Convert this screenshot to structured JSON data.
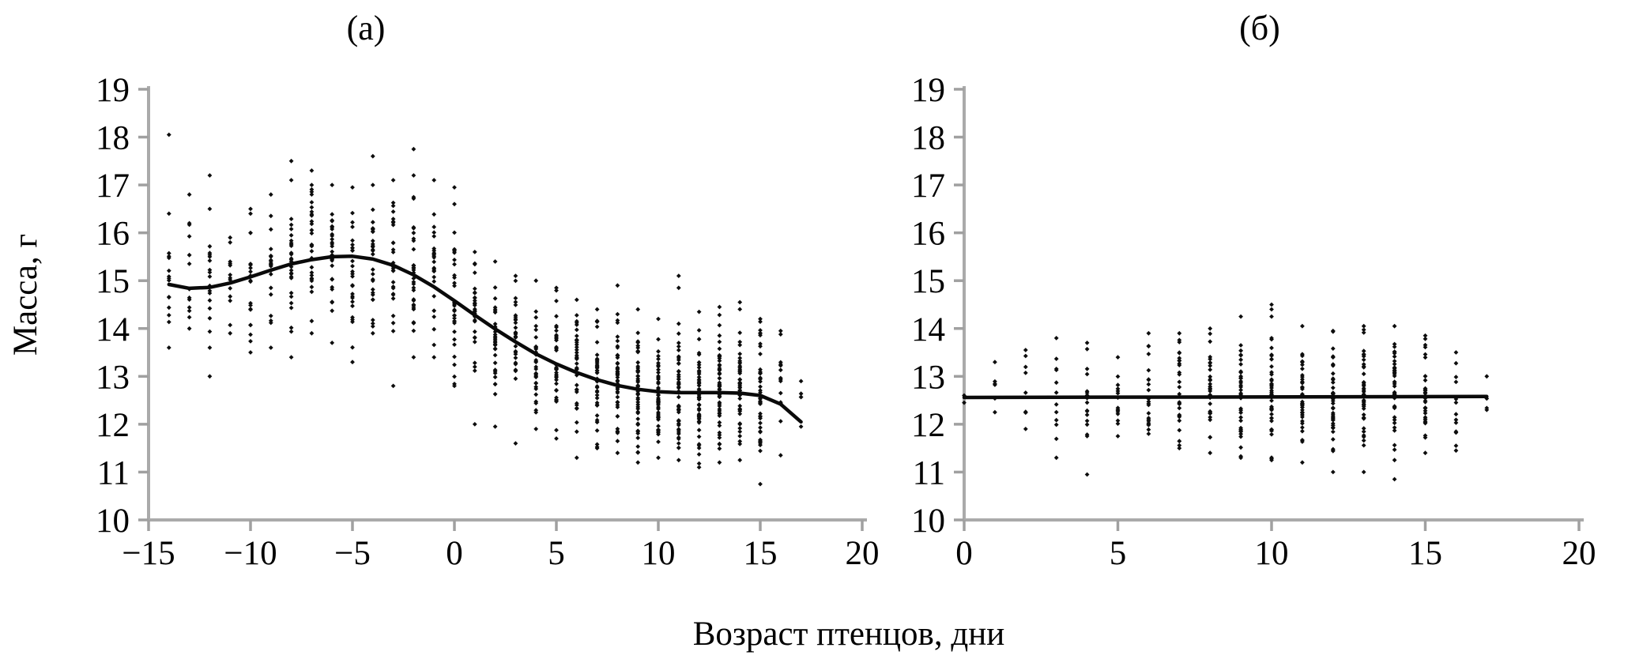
{
  "figure": {
    "panel_a_title": "(а)",
    "panel_b_title": "(б)",
    "y_axis_label": "Масса, г",
    "x_axis_label": "Возраст птенцов, дни"
  },
  "colors": {
    "point": "#0d0d0d",
    "trend_line": "#0a0a0a",
    "axis": "#aaaaaa",
    "tick": "#a0a0a0",
    "text": "#000000",
    "background": "#ffffff"
  },
  "chart_data": [
    {
      "type": "scatter",
      "panel": "(а)",
      "xlabel": "Возраст птенцов, дни",
      "ylabel": "Масса, г",
      "xlim": [
        -15,
        20
      ],
      "ylim": [
        10,
        19
      ],
      "grid": false,
      "xticks": [
        {
          "v": -15,
          "label": "−15"
        },
        {
          "v": -10,
          "label": "−10"
        },
        {
          "v": -5,
          "label": "−5"
        },
        {
          "v": 0,
          "label": "0"
        },
        {
          "v": 5,
          "label": "5"
        },
        {
          "v": 10,
          "label": "10"
        },
        {
          "v": 15,
          "label": "15"
        },
        {
          "v": 20,
          "label": "20"
        }
      ],
      "yticks": [
        {
          "v": 10,
          "label": "10"
        },
        {
          "v": 11,
          "label": "11"
        },
        {
          "v": 12,
          "label": "12"
        },
        {
          "v": 13,
          "label": "13"
        },
        {
          "v": 14,
          "label": "14"
        },
        {
          "v": 15,
          "label": "15"
        },
        {
          "v": 16,
          "label": "16"
        },
        {
          "v": 17,
          "label": "17"
        },
        {
          "v": 18,
          "label": "18"
        },
        {
          "v": 19,
          "label": "19"
        }
      ],
      "columns": [
        {
          "x": -14,
          "n": 14,
          "mean": 14.8,
          "sd": 0.65,
          "min": 13.6,
          "max": 16.4,
          "extras": [
            18.05
          ]
        },
        {
          "x": -13,
          "n": 13,
          "mean": 14.9,
          "sd": 0.6,
          "min": 14.0,
          "max": 16.2,
          "extras": [
            16.8
          ]
        },
        {
          "x": -12,
          "n": 18,
          "mean": 15.0,
          "sd": 0.65,
          "min": 13.6,
          "max": 16.5,
          "extras": [
            17.2,
            13.0
          ]
        },
        {
          "x": -11,
          "n": 13,
          "mean": 14.9,
          "sd": 0.6,
          "min": 13.9,
          "max": 15.9,
          "extras": []
        },
        {
          "x": -10,
          "n": 18,
          "mean": 15.0,
          "sd": 0.65,
          "min": 13.5,
          "max": 16.0,
          "extras": [
            16.5,
            16.4
          ]
        },
        {
          "x": -9,
          "n": 22,
          "mean": 15.2,
          "sd": 0.7,
          "min": 13.6,
          "max": 16.8,
          "extras": []
        },
        {
          "x": -8,
          "n": 28,
          "mean": 15.3,
          "sd": 0.75,
          "min": 13.4,
          "max": 17.1,
          "extras": [
            17.5
          ]
        },
        {
          "x": -7,
          "n": 30,
          "mean": 15.4,
          "sd": 0.75,
          "min": 13.9,
          "max": 17.0,
          "extras": [
            17.3
          ]
        },
        {
          "x": -6,
          "n": 28,
          "mean": 15.5,
          "sd": 0.7,
          "min": 13.7,
          "max": 17.0,
          "extras": []
        },
        {
          "x": -5,
          "n": 28,
          "mean": 15.45,
          "sd": 0.75,
          "min": 13.3,
          "max": 16.95,
          "extras": []
        },
        {
          "x": -4,
          "n": 32,
          "mean": 15.45,
          "sd": 0.75,
          "min": 13.9,
          "max": 17.0,
          "extras": [
            17.6
          ]
        },
        {
          "x": -3,
          "n": 28,
          "mean": 15.3,
          "sd": 0.75,
          "min": 12.8,
          "max": 17.1,
          "extras": []
        },
        {
          "x": -2,
          "n": 32,
          "mean": 15.1,
          "sd": 0.8,
          "min": 13.4,
          "max": 17.2,
          "extras": [
            17.75
          ]
        },
        {
          "x": -1,
          "n": 28,
          "mean": 14.9,
          "sd": 0.75,
          "min": 13.4,
          "max": 17.1,
          "extras": []
        },
        {
          "x": 0,
          "n": 34,
          "mean": 14.6,
          "sd": 0.8,
          "min": 12.8,
          "max": 16.6,
          "extras": [
            16.95
          ]
        },
        {
          "x": 1,
          "n": 30,
          "mean": 14.3,
          "sd": 0.75,
          "min": 12.0,
          "max": 15.6,
          "extras": []
        },
        {
          "x": 2,
          "n": 32,
          "mean": 14.0,
          "sd": 0.75,
          "min": 11.95,
          "max": 15.4,
          "extras": []
        },
        {
          "x": 3,
          "n": 32,
          "mean": 13.8,
          "sd": 0.7,
          "min": 11.6,
          "max": 15.1,
          "extras": []
        },
        {
          "x": 4,
          "n": 34,
          "mean": 13.6,
          "sd": 0.7,
          "min": 11.9,
          "max": 15.0,
          "extras": []
        },
        {
          "x": 5,
          "n": 38,
          "mean": 13.4,
          "sd": 0.7,
          "min": 11.7,
          "max": 14.85,
          "extras": []
        },
        {
          "x": 6,
          "n": 38,
          "mean": 13.2,
          "sd": 0.7,
          "min": 11.3,
          "max": 14.6,
          "extras": []
        },
        {
          "x": 7,
          "n": 42,
          "mean": 13.0,
          "sd": 0.65,
          "min": 11.5,
          "max": 14.4,
          "extras": []
        },
        {
          "x": 8,
          "n": 48,
          "mean": 12.85,
          "sd": 0.65,
          "min": 11.4,
          "max": 14.3,
          "extras": [
            14.9
          ]
        },
        {
          "x": 9,
          "n": 48,
          "mean": 12.8,
          "sd": 0.65,
          "min": 11.2,
          "max": 14.4,
          "extras": []
        },
        {
          "x": 10,
          "n": 52,
          "mean": 12.7,
          "sd": 0.65,
          "min": 11.3,
          "max": 14.2,
          "extras": []
        },
        {
          "x": 11,
          "n": 52,
          "mean": 12.7,
          "sd": 0.65,
          "min": 11.25,
          "max": 14.1,
          "extras": [
            15.1,
            14.85
          ]
        },
        {
          "x": 12,
          "n": 56,
          "mean": 12.65,
          "sd": 0.65,
          "min": 11.1,
          "max": 14.35,
          "extras": []
        },
        {
          "x": 13,
          "n": 56,
          "mean": 12.65,
          "sd": 0.65,
          "min": 11.2,
          "max": 14.45,
          "extras": []
        },
        {
          "x": 14,
          "n": 52,
          "mean": 12.7,
          "sd": 0.65,
          "min": 11.25,
          "max": 14.55,
          "extras": []
        },
        {
          "x": 15,
          "n": 46,
          "mean": 12.6,
          "sd": 0.7,
          "min": 10.75,
          "max": 14.2,
          "extras": []
        },
        {
          "x": 16,
          "n": 16,
          "mean": 12.7,
          "sd": 0.7,
          "min": 11.35,
          "max": 13.95,
          "extras": []
        },
        {
          "x": 17,
          "n": 5,
          "mean": 12.4,
          "sd": 0.35,
          "min": 11.95,
          "max": 12.9,
          "extras": []
        }
      ],
      "trend": [
        [
          -14,
          14.92
        ],
        [
          -13,
          14.84
        ],
        [
          -12,
          14.86
        ],
        [
          -11,
          14.95
        ],
        [
          -10,
          15.08
        ],
        [
          -9,
          15.22
        ],
        [
          -8,
          15.35
        ],
        [
          -7,
          15.44
        ],
        [
          -6,
          15.5
        ],
        [
          -5,
          15.51
        ],
        [
          -4,
          15.45
        ],
        [
          -3,
          15.32
        ],
        [
          -2,
          15.12
        ],
        [
          -1,
          14.87
        ],
        [
          0,
          14.58
        ],
        [
          1,
          14.28
        ],
        [
          2,
          13.99
        ],
        [
          3,
          13.72
        ],
        [
          4,
          13.47
        ],
        [
          5,
          13.26
        ],
        [
          6,
          13.08
        ],
        [
          7,
          12.93
        ],
        [
          8,
          12.81
        ],
        [
          9,
          12.73
        ],
        [
          10,
          12.68
        ],
        [
          11,
          12.66
        ],
        [
          12,
          12.66
        ],
        [
          13,
          12.66
        ],
        [
          14,
          12.65
        ],
        [
          15,
          12.6
        ],
        [
          16,
          12.42
        ],
        [
          17,
          12.05
        ]
      ]
    },
    {
      "type": "scatter",
      "panel": "(б)",
      "xlabel": "Возраст птенцов, дни",
      "ylabel": "Масса, г",
      "xlim": [
        0,
        20
      ],
      "ylim": [
        10,
        19
      ],
      "grid": false,
      "xticks": [
        {
          "v": 0,
          "label": "0"
        },
        {
          "v": 5,
          "label": "5"
        },
        {
          "v": 10,
          "label": "10"
        },
        {
          "v": 15,
          "label": "15"
        },
        {
          "v": 20,
          "label": "20"
        }
      ],
      "yticks": [
        {
          "v": 10,
          "label": "10"
        },
        {
          "v": 11,
          "label": "11"
        },
        {
          "v": 12,
          "label": "12"
        },
        {
          "v": 13,
          "label": "13"
        },
        {
          "v": 14,
          "label": "14"
        },
        {
          "v": 15,
          "label": "15"
        },
        {
          "v": 16,
          "label": "16"
        },
        {
          "v": 17,
          "label": "17"
        },
        {
          "v": 18,
          "label": "18"
        },
        {
          "v": 19,
          "label": "19"
        }
      ],
      "columns": [
        {
          "x": 0,
          "n": 2,
          "mean": 12.55,
          "sd": 0.05,
          "min": 12.45,
          "max": 12.6,
          "extras": []
        },
        {
          "x": 1,
          "n": 6,
          "mean": 12.6,
          "sd": 0.4,
          "min": 12.25,
          "max": 13.3,
          "extras": []
        },
        {
          "x": 2,
          "n": 8,
          "mean": 12.6,
          "sd": 0.45,
          "min": 11.9,
          "max": 13.55,
          "extras": []
        },
        {
          "x": 3,
          "n": 12,
          "mean": 12.7,
          "sd": 0.7,
          "min": 11.3,
          "max": 13.8,
          "extras": []
        },
        {
          "x": 4,
          "n": 16,
          "mean": 12.5,
          "sd": 0.55,
          "min": 11.75,
          "max": 13.7,
          "extras": [
            10.95
          ]
        },
        {
          "x": 5,
          "n": 16,
          "mean": 12.5,
          "sd": 0.5,
          "min": 11.75,
          "max": 13.4,
          "extras": []
        },
        {
          "x": 6,
          "n": 22,
          "mean": 12.6,
          "sd": 0.55,
          "min": 11.8,
          "max": 13.9,
          "extras": []
        },
        {
          "x": 7,
          "n": 28,
          "mean": 12.6,
          "sd": 0.6,
          "min": 11.5,
          "max": 13.9,
          "extras": []
        },
        {
          "x": 8,
          "n": 32,
          "mean": 12.6,
          "sd": 0.6,
          "min": 11.4,
          "max": 14.0,
          "extras": []
        },
        {
          "x": 9,
          "n": 36,
          "mean": 12.6,
          "sd": 0.6,
          "min": 11.3,
          "max": 13.65,
          "extras": [
            14.25
          ]
        },
        {
          "x": 10,
          "n": 42,
          "mean": 12.6,
          "sd": 0.6,
          "min": 11.25,
          "max": 13.8,
          "extras": [
            14.5,
            14.4,
            14.25
          ]
        },
        {
          "x": 11,
          "n": 44,
          "mean": 12.6,
          "sd": 0.6,
          "min": 11.2,
          "max": 14.05,
          "extras": []
        },
        {
          "x": 12,
          "n": 48,
          "mean": 12.55,
          "sd": 0.65,
          "min": 11.0,
          "max": 13.95,
          "extras": []
        },
        {
          "x": 13,
          "n": 48,
          "mean": 12.55,
          "sd": 0.65,
          "min": 11.0,
          "max": 14.05,
          "extras": []
        },
        {
          "x": 14,
          "n": 44,
          "mean": 12.6,
          "sd": 0.6,
          "min": 11.25,
          "max": 14.05,
          "extras": [
            10.85
          ]
        },
        {
          "x": 15,
          "n": 36,
          "mean": 12.6,
          "sd": 0.55,
          "min": 11.4,
          "max": 13.85,
          "extras": []
        },
        {
          "x": 16,
          "n": 13,
          "mean": 12.5,
          "sd": 0.6,
          "min": 11.45,
          "max": 13.5,
          "extras": []
        },
        {
          "x": 17,
          "n": 4,
          "mean": 12.6,
          "sd": 0.25,
          "min": 12.3,
          "max": 13.0,
          "extras": []
        }
      ],
      "trend": [
        [
          0,
          12.56
        ],
        [
          17,
          12.58
        ]
      ]
    }
  ]
}
